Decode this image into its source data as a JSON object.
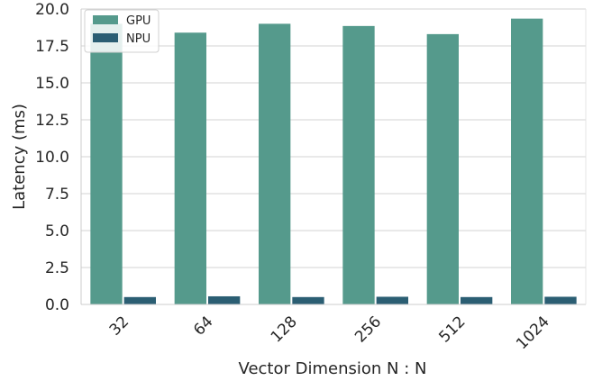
{
  "chart_data": {
    "type": "bar",
    "title": "",
    "xlabel": "Vector Dimension N : N",
    "ylabel": "Latency (ms)",
    "categories": [
      "32",
      "64",
      "128",
      "256",
      "512",
      "1024"
    ],
    "ylim": [
      0,
      20
    ],
    "yticks": [
      "0.0",
      "2.5",
      "5.0",
      "7.5",
      "10.0",
      "12.5",
      "15.0",
      "17.5",
      "20.0"
    ],
    "series": [
      {
        "name": "GPU",
        "color": "#559a8c",
        "values": [
          19.0,
          18.4,
          19.0,
          18.85,
          18.3,
          19.35
        ]
      },
      {
        "name": "NPU",
        "color": "#2b5e73",
        "values": [
          0.5,
          0.55,
          0.5,
          0.52,
          0.5,
          0.52
        ]
      }
    ],
    "grid": "horizontal",
    "legend_position": "top-left"
  }
}
